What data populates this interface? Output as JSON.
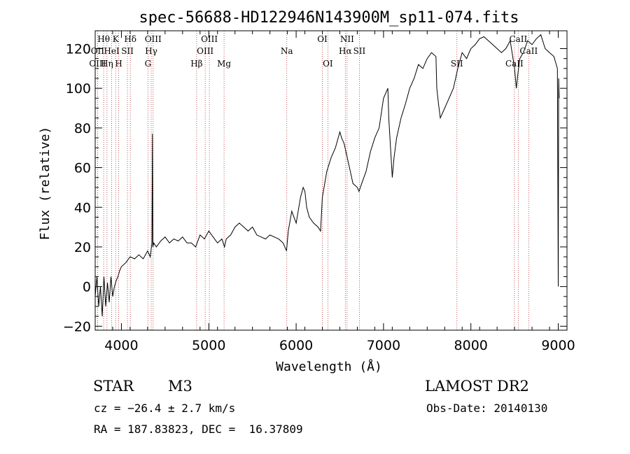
{
  "chart_data": {
    "type": "line",
    "title": "spec-56688-HD122946N143900M_sp11-074.fits",
    "xlabel": "Wavelength (Å)",
    "ylabel": "Flux (relative)",
    "xlim": [
      3700,
      9100
    ],
    "ylim": [
      -22,
      129
    ],
    "x_ticks": [
      4000,
      5000,
      6000,
      7000,
      8000,
      9000
    ],
    "y_ticks": [
      -20,
      0,
      20,
      40,
      60,
      80,
      100,
      120
    ],
    "grid": false,
    "series": [
      {
        "x": [
          3700,
          3720,
          3740,
          3760,
          3780,
          3800,
          3820,
          3840,
          3860,
          3880,
          3900,
          3920,
          3940,
          3960,
          3980,
          4000,
          4050,
          4100,
          4150,
          4200,
          4250,
          4300,
          4330,
          4350,
          4355,
          4360,
          4370,
          4400,
          4450,
          4500,
          4550,
          4600,
          4650,
          4700,
          4750,
          4800,
          4850,
          4900,
          4950,
          5000,
          5050,
          5100,
          5150,
          5180,
          5200,
          5250,
          5300,
          5350,
          5400,
          5450,
          5500,
          5550,
          5600,
          5650,
          5700,
          5750,
          5800,
          5850,
          5890,
          5910,
          5950,
          6000,
          6050,
          6080,
          6100,
          6120,
          6150,
          6200,
          6250,
          6280,
          6300,
          6350,
          6400,
          6450,
          6500,
          6520,
          6550,
          6570,
          6600,
          6620,
          6650,
          6700,
          6720,
          6750,
          6800,
          6850,
          6900,
          6950,
          7000,
          7050,
          7060,
          7080,
          7100,
          7120,
          7150,
          7200,
          7250,
          7300,
          7350,
          7400,
          7450,
          7500,
          7550,
          7600,
          7610,
          7630,
          7650,
          7700,
          7750,
          7800,
          7850,
          7900,
          7950,
          8000,
          8050,
          8100,
          8150,
          8200,
          8250,
          8300,
          8350,
          8400,
          8450,
          8500,
          8520,
          8540,
          8560,
          8600,
          8650,
          8700,
          8750,
          8800,
          8850,
          8900,
          8950,
          8990,
          9000,
          9005,
          9010
        ],
        "values": [
          -5,
          5,
          -10,
          0,
          -15,
          5,
          -10,
          2,
          -8,
          5,
          -5,
          0,
          3,
          5,
          8,
          10,
          12,
          15,
          14,
          16,
          14,
          18,
          15,
          22,
          77,
          20,
          22,
          20,
          23,
          25,
          22,
          24,
          23,
          25,
          22,
          22,
          20,
          26,
          24,
          28,
          25,
          22,
          24,
          20,
          24,
          26,
          30,
          32,
          30,
          28,
          30,
          26,
          25,
          24,
          26,
          25,
          24,
          22,
          18,
          28,
          38,
          32,
          45,
          50,
          48,
          40,
          35,
          32,
          30,
          28,
          45,
          58,
          65,
          70,
          78,
          75,
          72,
          68,
          62,
          58,
          52,
          50,
          48,
          52,
          58,
          68,
          75,
          80,
          95,
          100,
          85,
          70,
          55,
          65,
          75,
          85,
          92,
          100,
          105,
          112,
          110,
          115,
          118,
          116,
          100,
          92,
          85,
          90,
          95,
          100,
          110,
          118,
          115,
          120,
          122,
          125,
          126,
          124,
          122,
          120,
          118,
          120,
          124,
          110,
          100,
          108,
          115,
          118,
          124,
          122,
          125,
          127,
          120,
          118,
          116,
          110,
          0,
          105,
          95
        ]
      }
    ],
    "spectral_lines": [
      {
        "label": "Hθ",
        "x": 3797,
        "row": 1
      },
      {
        "label": "OII",
        "x": 3727,
        "row": 2
      },
      {
        "label": "OIII",
        "x": 3727,
        "row": 3
      },
      {
        "label": "K",
        "x": 3934,
        "row": 1
      },
      {
        "label": "HeI",
        "x": 3889,
        "row": 2
      },
      {
        "label": "Hη",
        "x": 3835,
        "row": 3
      },
      {
        "label": "Hδ",
        "x": 4102,
        "row": 1
      },
      {
        "label": "SII",
        "x": 4069,
        "row": 2
      },
      {
        "label": "H",
        "x": 3969,
        "row": 3
      },
      {
        "label": "OIII",
        "x": 4363,
        "row": 1
      },
      {
        "label": "Hγ",
        "x": 4341,
        "row": 2
      },
      {
        "label": "G",
        "x": 4304,
        "row": 3
      },
      {
        "label": "OIII",
        "x": 5007,
        "row": 1
      },
      {
        "label": "OIII",
        "x": 4959,
        "row": 2
      },
      {
        "label": "Hβ",
        "x": 4861,
        "row": 3
      },
      {
        "label": "Mg",
        "x": 5175,
        "row": 3
      },
      {
        "label": "Na",
        "x": 5893,
        "row": 2
      },
      {
        "label": "OI",
        "x": 6300,
        "row": 1
      },
      {
        "label": "OI",
        "x": 6363,
        "row": 3
      },
      {
        "label": "NII",
        "x": 6583,
        "row": 1
      },
      {
        "label": "Hα",
        "x": 6563,
        "row": 2
      },
      {
        "label": "SII",
        "x": 6724,
        "row": 2
      },
      {
        "label": "SII",
        "x": 7840,
        "row": 3
      },
      {
        "label": "CaII",
        "x": 8542,
        "row": 1
      },
      {
        "label": "CaII",
        "x": 8662,
        "row": 2
      },
      {
        "label": "CaII",
        "x": 8498,
        "row": 3
      }
    ]
  },
  "info": {
    "object_type": "STAR",
    "subclass": "M3",
    "survey": "LAMOST DR2",
    "redshift": "cz = −26.4 ± 2.7 km/s",
    "obs_date": "Obs-Date: 20140130",
    "coords": "RA = 187.83823, DEC =  16.37809"
  }
}
